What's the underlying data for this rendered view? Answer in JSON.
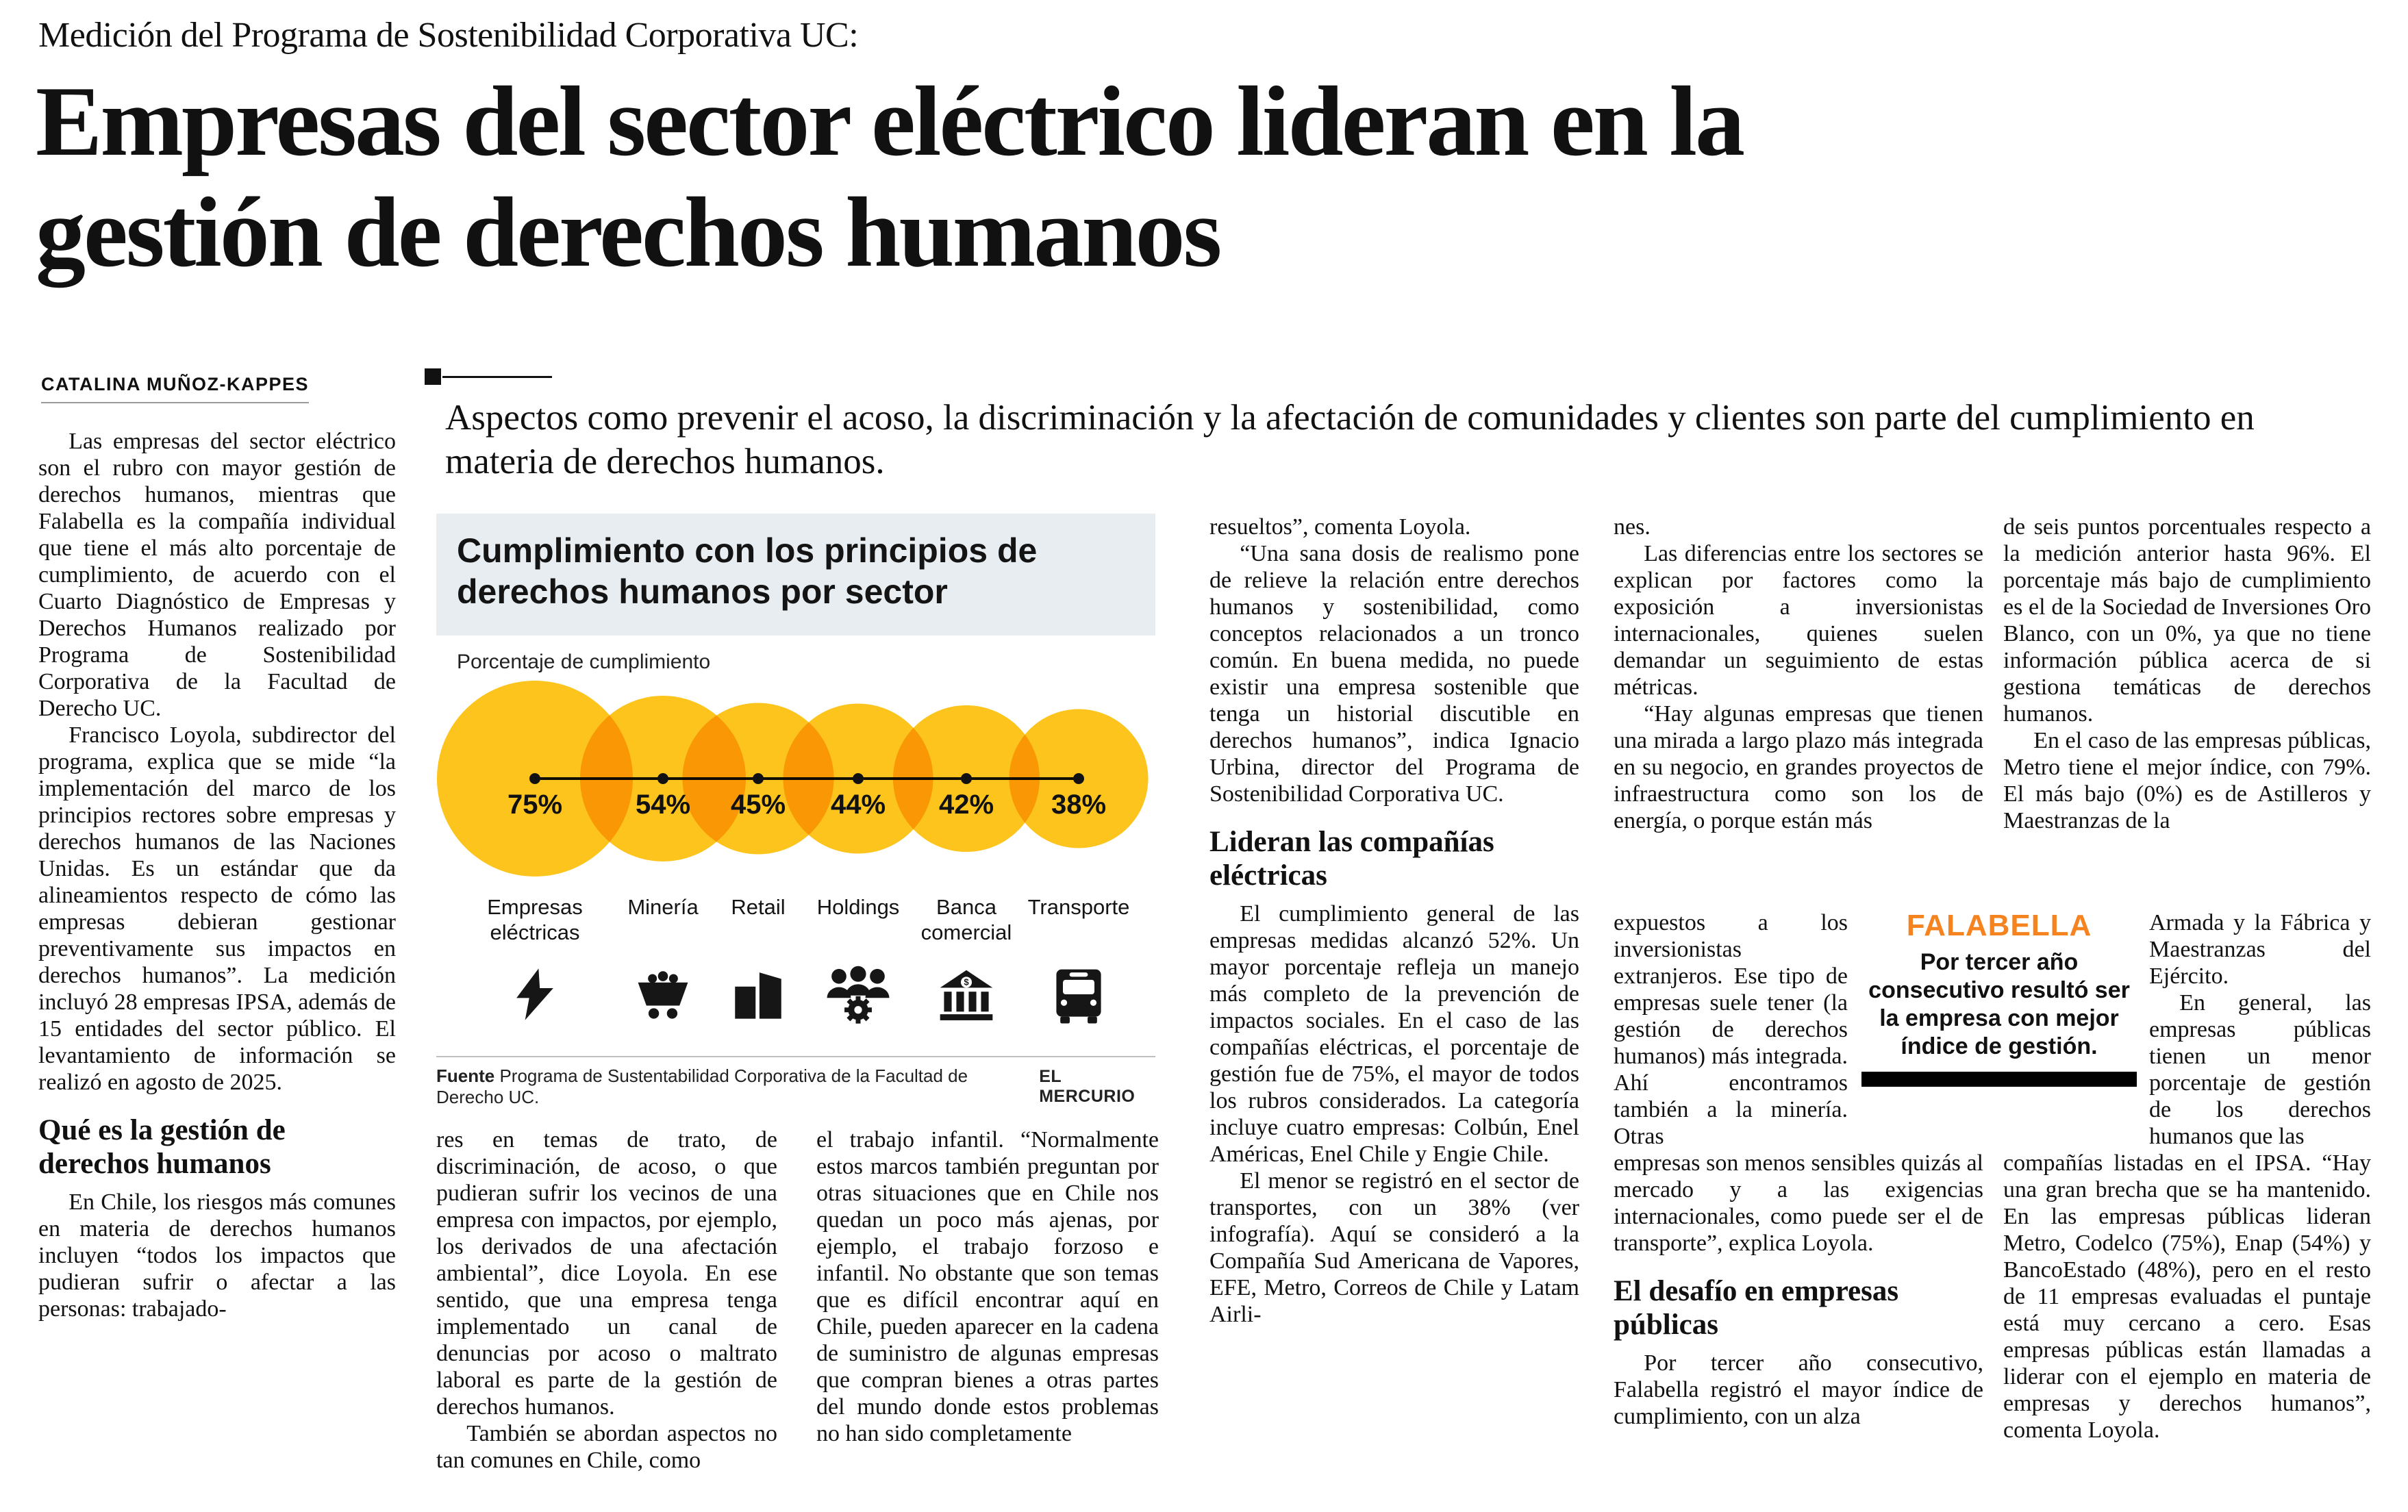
{
  "kicker": "Medición del Programa de Sostenibilidad Corporativa UC:",
  "headline_lines": [
    "Empresas del sector eléctrico lideran en la",
    "gestión de derechos humanos"
  ],
  "byline": "CATALINA MUÑOZ-KAPPES",
  "deck": "Aspectos como prevenir el acoso, la discriminación y la afectación de comunidades y clientes son parte del cumplimiento en materia de derechos humanos.",
  "infographic": {
    "title": "Cumplimiento con los principios de derechos humanos por sector",
    "subtitle": "Porcentaje de cumplimiento",
    "source_label": "Fuente",
    "source_text": "Programa de Sustentabilidad Corporativa de la Facultad de Derecho UC.",
    "credit": "EL MERCURIO",
    "chart_data": {
      "type": "bubble",
      "title": "Cumplimiento con los principios de derechos humanos por sector",
      "unit": "%",
      "categories": [
        "Empresas eléctricas",
        "Minería",
        "Retail",
        "Holdings",
        "Banca comercial",
        "Transporte"
      ],
      "values": [
        75,
        54,
        45,
        44,
        42,
        38
      ],
      "value_labels": [
        "75%",
        "54%",
        "45%",
        "44%",
        "42%",
        "38%"
      ],
      "icon_names": [
        "lightning-icon",
        "mine-cart-icon",
        "retail-building-icon",
        "holdings-people-gear-icon",
        "bank-icon",
        "bus-icon"
      ],
      "bubble_color": "#FCC41D"
    }
  },
  "falabella": {
    "brand": "FALABELLA",
    "note": "Por tercer año consecutivo resultó ser la empresa con mejor índice de gestión.",
    "color": "#F5831F"
  },
  "columns": {
    "col1": {
      "p1": "Las empresas del sector eléctrico son el rubro con mayor gestión de derechos humanos, mientras que Falabella es la compañía individual que tiene el más alto porcentaje de cumplimiento, de acuerdo con el Cuarto Diagnóstico de Empresas y Derechos Humanos realizado por Programa de Sostenibilidad Corporativa de la Facultad de Derecho UC.",
      "p2": "Francisco Loyola, subdirector del programa, explica que se mide “la implementación del marco de los principios rectores sobre empresas y derechos humanos de las Naciones Unidas. Es un estándar que da alineamientos respecto de cómo las empresas debieran gestionar preventivamente sus impactos en derechos humanos”. La medición incluyó 28 empresas IPSA, además de 15 entidades del sector público. El levantamiento de información se realizó en agosto de 2025.",
      "subhead": "Qué es la gestión de derechos humanos",
      "p3": "En Chile, los riesgos más comunes en materia de derechos humanos incluyen “todos los impactos que pudieran sufrir o afectar a las personas: trabajado-"
    },
    "col2": {
      "p1": "res en temas de trato, de discriminación, de acoso, o que pudieran sufrir los vecinos de una empresa con impactos, por ejemplo, los derivados de una afectación ambiental”, dice Loyola. En ese sentido, que una empresa tenga implementado un canal de denuncias por acoso o maltrato laboral es parte de la gestión de derechos humanos.",
      "p2": "También se abordan aspectos no tan comunes en Chile, como"
    },
    "col3": {
      "p1": "el trabajo infantil. “Normalmente estos marcos también preguntan por otras situaciones que en Chile nos quedan un poco más ajenas, por ejemplo, el trabajo forzoso e infantil. No obstante que son temas que es difícil encontrar aquí en Chile, pueden aparecer en la cadena de suministro de algunas empresas que compran bienes a otras partes del mundo donde estos problemas no han sido completamente"
    },
    "col4": {
      "p1": "resueltos”, comenta Loyola.",
      "p2": "“Una sana dosis de realismo pone de relieve la relación entre derechos humanos y sostenibilidad, como conceptos relacionados a un tronco común. En buena medida, no puede existir una empresa sostenible que tenga un historial discutible en derechos humanos”, indica Ignacio Urbina, director del Programa de Sostenibilidad Corporativa UC.",
      "subhead": "Lideran las compañías eléctricas",
      "p3": "El cumplimiento general de las empresas medidas alcanzó 52%. Un mayor porcentaje refleja un manejo más completo de la prevención de impactos sociales. En el caso de las compañías eléctricas, el porcentaje de gestión fue de 75%, el mayor de todos los rubros considerados. La categoría incluye cuatro empresas: Colbún, Enel Américas, Enel Chile y Engie Chile.",
      "p4": "El menor se registró en el sector de transportes, con un 38% (ver infografía). Aquí se consideró a la Compañía Sud Americana de Vapores, EFE, Metro, Correos de Chile y Latam Airli-"
    },
    "col5": {
      "p1": "nes.",
      "p2": "Las diferencias entre los sectores se explican por factores como la exposición a inversionistas internacionales, quienes suelen demandar un seguimiento de estas métricas.",
      "p3a": "“Hay algunas empresas que tienen una mirada a largo plazo más integrada en su negocio, en grandes proyectos de infraestructura como son los de energía, o porque están más",
      "p3b": "expuestos a los inversionistas extranjeros. Ese tipo de empresas suele tener (la gestión de derechos humanos) más integrada. Ahí encontramos también a la minería. Otras",
      "p3c": "empresas son menos sensibles quizás al mercado y a las exigencias internacionales, como puede ser el de transporte”, explica Loyola.",
      "subhead": "El desafío en empresas públicas",
      "p4": "Por tercer año consecutivo, Falabella registró el mayor índice de cumplimiento, con un alza"
    },
    "col6": {
      "p1": "de seis puntos porcentuales respecto a la medición anterior hasta 96%. El porcentaje más bajo de cumplimiento es el de la Sociedad de Inversiones Oro Blanco, con un 0%, ya que no tiene información pública acerca de si gestiona temáticas de derechos humanos.",
      "p2a": "En el caso de las empresas públicas, Metro tiene el mejor índice, con 79%. El más bajo (0%) es de Astilleros y Maestranzas de la",
      "p2b": "Armada y la Fábrica y Maestranzas del Ejército.",
      "p3": "En general, las empresas públicas tienen un menor porcentaje de gestión de los derechos humanos que las",
      "p4": "compañías listadas en el IPSA. “Hay una gran brecha que se ha mantenido. En las empresas públicas lideran Metro, Codelco (75%), Enap (54%) y BancoEstado (48%), pero en el resto de 11 empresas evaluadas el puntaje está muy cercano a cero. Esas empresas públicas están llamadas a liderar con el ejemplo en materia de empresas y derechos humanos”, comenta Loyola."
    }
  }
}
